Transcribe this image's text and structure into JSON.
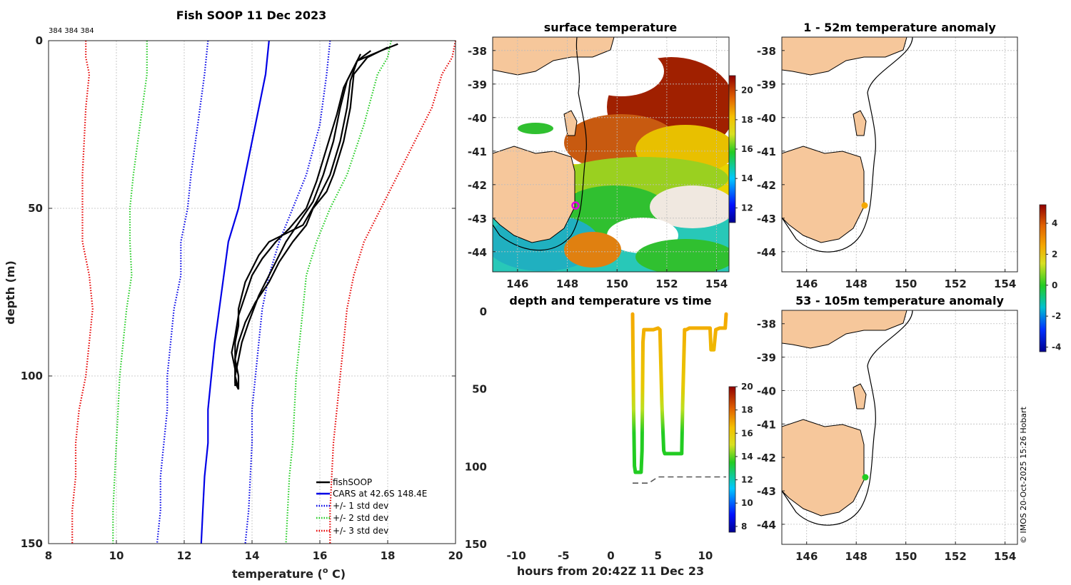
{
  "profile": {
    "title": "Fish SOOP 11 Dec 2023",
    "counts": "384 384 384",
    "xlabel": "temperature (",
    "xlabel_sup": "o",
    "xlabel_end": " C)",
    "ylabel": "depth (m)"
  },
  "sst": {
    "title": "surface temperature"
  },
  "anom1": {
    "title": "1 - 52m temperature anomaly"
  },
  "anom2": {
    "title": "53 - 105m temperature anomaly"
  },
  "tseries": {
    "title": "depth and temperature vs time",
    "xlabel": "hours from 20:42Z 11 Dec 23"
  },
  "credit": "© IMOS 20-Oct-2025 15:26 Hobart",
  "colors": {
    "fishsoop": "#000000",
    "cars": "#0000e6",
    "std1": "#0000e6",
    "std2": "#22cc22",
    "std3": "#e60000",
    "marker_sst": "#e000e0",
    "marker_anom1": "#f5a800",
    "marker_anom2": "#22cc22"
  },
  "chart_data": [
    {
      "type": "line",
      "name": "temperature profile",
      "title": "Fish SOOP 11 Dec 2023",
      "xlabel": "temperature (o C)",
      "ylabel": "depth (m)",
      "xlim": [
        8,
        20
      ],
      "ylim": [
        150,
        0
      ],
      "xticks": [
        8,
        10,
        12,
        14,
        16,
        18,
        20
      ],
      "yticks": [
        0,
        50,
        100,
        150
      ],
      "legend": [
        "fishSOOP",
        "CARS at 42.6S 148.4E",
        "+/- 1 std dev",
        "+/- 2 std dev",
        "+/- 3 std dev"
      ],
      "legend_position": "bottom-right",
      "series": [
        {
          "name": "CARS at 42.6S 148.4E",
          "style": "solid",
          "color": "#0000e6",
          "depth": [
            0,
            10,
            25,
            40,
            50,
            60,
            75,
            90,
            100,
            110,
            120,
            130,
            140,
            150
          ],
          "temp": [
            14.5,
            14.4,
            14.1,
            13.8,
            13.6,
            13.3,
            13.1,
            12.9,
            12.8,
            12.7,
            12.7,
            12.6,
            12.55,
            12.5
          ]
        },
        {
          "name": "+1 std dev",
          "style": "dotted",
          "color": "#0000e6",
          "depth": [
            0,
            10,
            25,
            40,
            50,
            55,
            60,
            70,
            80,
            90,
            100,
            110,
            120,
            130,
            140,
            150
          ],
          "temp": [
            16.3,
            16.2,
            16.0,
            15.6,
            15.2,
            15.0,
            14.8,
            14.5,
            14.3,
            14.2,
            14.1,
            14.0,
            14.0,
            13.95,
            13.9,
            13.8
          ]
        },
        {
          "name": "-1 std dev",
          "style": "dotted",
          "color": "#0000e6",
          "depth": [
            0,
            10,
            25,
            40,
            50,
            60,
            70,
            80,
            90,
            100,
            110,
            120,
            130,
            140,
            150
          ],
          "temp": [
            12.7,
            12.6,
            12.4,
            12.2,
            12.1,
            11.9,
            11.9,
            11.7,
            11.6,
            11.5,
            11.5,
            11.4,
            11.3,
            11.3,
            11.2
          ]
        },
        {
          "name": "+2 std dev",
          "style": "dotted",
          "color": "#22cc22",
          "depth": [
            0,
            5,
            10,
            25,
            40,
            50,
            60,
            70,
            80,
            90,
            100,
            110,
            120,
            130,
            140,
            150
          ],
          "temp": [
            18.1,
            18.0,
            17.7,
            17.3,
            16.8,
            16.3,
            15.9,
            15.6,
            15.5,
            15.4,
            15.3,
            15.25,
            15.2,
            15.1,
            15.05,
            15.0
          ]
        },
        {
          "name": "-2 std dev",
          "style": "dotted",
          "color": "#22cc22",
          "depth": [
            0,
            5,
            10,
            25,
            40,
            50,
            60,
            70,
            80,
            90,
            100,
            110,
            120,
            130,
            140,
            150
          ],
          "temp": [
            10.9,
            10.9,
            10.9,
            10.7,
            10.5,
            10.4,
            10.4,
            10.45,
            10.3,
            10.2,
            10.1,
            10.05,
            10.0,
            9.95,
            9.9,
            9.9
          ]
        },
        {
          "name": "+3 std dev",
          "style": "dotted",
          "color": "#e60000",
          "depth": [
            0,
            5,
            10,
            20,
            30,
            40,
            50,
            60,
            70,
            80,
            90,
            100,
            110,
            120,
            130,
            140,
            150
          ],
          "temp": [
            20.0,
            19.9,
            19.6,
            19.3,
            18.8,
            18.3,
            17.8,
            17.3,
            17.0,
            16.8,
            16.7,
            16.6,
            16.5,
            16.4,
            16.35,
            16.3,
            16.3
          ]
        },
        {
          "name": "-3 std dev",
          "style": "dotted",
          "color": "#e60000",
          "depth": [
            0,
            5,
            10,
            20,
            40,
            60,
            70,
            80,
            90,
            100,
            110,
            120,
            130,
            140,
            150
          ],
          "temp": [
            9.1,
            9.1,
            9.2,
            9.1,
            9.0,
            9.0,
            9.2,
            9.3,
            9.2,
            9.1,
            8.9,
            8.8,
            8.8,
            8.7,
            8.7
          ]
        },
        {
          "name": "fishSOOP cast 1",
          "style": "solid",
          "color": "#000000",
          "depth": [
            1,
            3,
            6,
            12,
            20,
            30,
            40,
            48,
            55,
            60,
            64,
            68,
            72,
            76,
            80,
            85,
            90,
            94,
            98,
            102,
            104
          ],
          "temp": [
            18.3,
            17.8,
            17.1,
            16.9,
            16.8,
            16.6,
            16.3,
            15.9,
            15.5,
            14.5,
            14.2,
            14.0,
            13.8,
            13.7,
            13.6,
            13.6,
            13.5,
            13.5,
            13.5,
            13.5,
            13.6
          ]
        },
        {
          "name": "fishSOOP cast 2",
          "style": "solid",
          "color": "#000000",
          "depth": [
            2,
            5,
            10,
            20,
            30,
            40,
            45,
            50,
            55,
            60,
            66,
            72,
            78,
            84,
            90,
            95,
            100,
            104
          ],
          "temp": [
            18.0,
            17.4,
            17.0,
            16.9,
            16.7,
            16.4,
            16.2,
            15.8,
            15.6,
            15.2,
            14.8,
            14.5,
            14.1,
            13.8,
            13.6,
            13.5,
            13.6,
            13.6
          ]
        },
        {
          "name": "fishSOOP cast 3",
          "style": "solid",
          "color": "#000000",
          "depth": [
            3,
            6,
            12,
            20,
            30,
            40,
            48,
            54,
            60,
            68,
            76,
            84,
            90,
            95,
            100,
            104
          ],
          "temp": [
            17.5,
            17.1,
            16.8,
            16.6,
            16.4,
            16.1,
            15.8,
            15.4,
            15.0,
            14.6,
            14.2,
            13.9,
            13.7,
            13.6,
            13.5,
            13.6
          ]
        },
        {
          "name": "fishSOOP cast 4",
          "style": "solid",
          "color": "#000000",
          "depth": [
            4,
            8,
            14,
            22,
            32,
            42,
            50,
            56,
            60,
            65,
            70,
            76,
            82,
            88,
            93,
            98,
            103
          ],
          "temp": [
            17.2,
            17.0,
            16.7,
            16.5,
            16.2,
            15.9,
            15.6,
            15.1,
            14.7,
            14.3,
            14.0,
            13.8,
            13.6,
            13.5,
            13.4,
            13.5,
            13.5
          ]
        }
      ]
    },
    {
      "type": "heatmap",
      "name": "surface temperature map",
      "title": "surface temperature",
      "xlim": [
        145,
        154.5
      ],
      "ylim": [
        -44.6,
        -37.6
      ],
      "xticks": [
        146,
        148,
        150,
        152,
        154
      ],
      "yticks": [
        -38,
        -39,
        -40,
        -41,
        -42,
        -43,
        -44
      ],
      "colorbar": {
        "range": [
          11,
          21
        ],
        "ticks": [
          12,
          14,
          16,
          18,
          20
        ]
      },
      "marker": {
        "lon": 148.4,
        "lat": -42.6
      }
    },
    {
      "type": "scatter",
      "name": "1 - 52m temperature anomaly map",
      "title": "1 - 52m temperature anomaly",
      "xlim": [
        145,
        154.5
      ],
      "ylim": [
        -44.6,
        -37.6
      ],
      "xticks": [
        146,
        148,
        150,
        152,
        154
      ],
      "yticks": [
        -38,
        -39,
        -40,
        -41,
        -42,
        -43,
        -44
      ],
      "points": [
        {
          "lon": 148.3,
          "lat": -42.6,
          "anomaly": 2.3
        }
      ]
    },
    {
      "type": "scatter",
      "name": "53 - 105m temperature anomaly map",
      "title": "53 - 105m temperature anomaly",
      "xlim": [
        145,
        154.5
      ],
      "ylim": [
        -44.6,
        -37.6
      ],
      "xticks": [
        146,
        148,
        150,
        152,
        154
      ],
      "yticks": [
        -38,
        -39,
        -40,
        -41,
        -42,
        -43,
        -44
      ],
      "points": [
        {
          "lon": 148.4,
          "lat": -42.6,
          "anomaly": 0.3
        }
      ],
      "colorbar": {
        "range": [
          -4.3,
          5.2
        ],
        "ticks": [
          -4,
          -2,
          0,
          2,
          4
        ]
      }
    },
    {
      "type": "scatter",
      "name": "depth and temperature vs time",
      "title": "depth and temperature vs time",
      "xlabel": "hours from 20:42Z 11 Dec 23",
      "xlim": [
        -12.5,
        12.5
      ],
      "ylim": [
        150,
        0
      ],
      "xticks": [
        -10,
        -5,
        0,
        5,
        10
      ],
      "yticks": [
        0,
        50,
        100,
        150
      ],
      "colorbar": {
        "range": [
          7.5,
          20
        ],
        "ticks": [
          8,
          10,
          12,
          14,
          16,
          18,
          20
        ]
      },
      "track": {
        "hours": [
          2.3,
          2.4,
          2.5,
          2.6,
          3.2,
          3.3,
          3.4,
          3.5,
          4.5,
          5.0,
          5.2,
          5.4,
          5.6,
          5.7,
          6.5,
          7.5,
          7.6,
          7.8,
          8.0,
          8.3,
          9.0,
          10.0,
          10.5,
          10.6,
          10.9,
          11.1,
          11.5,
          12.1,
          12.2
        ],
        "depth": [
          2,
          60,
          100,
          104,
          104,
          90,
          20,
          12,
          12,
          11,
          12,
          60,
          90,
          92,
          92,
          92,
          60,
          12,
          12,
          11,
          11,
          11,
          11,
          25,
          25,
          12,
          11,
          11,
          2
        ]
      },
      "bottom_depth": {
        "hours": [
          2.3,
          4.0,
          5.0,
          12.2
        ],
        "depth": [
          111,
          111,
          107,
          107
        ]
      }
    }
  ]
}
